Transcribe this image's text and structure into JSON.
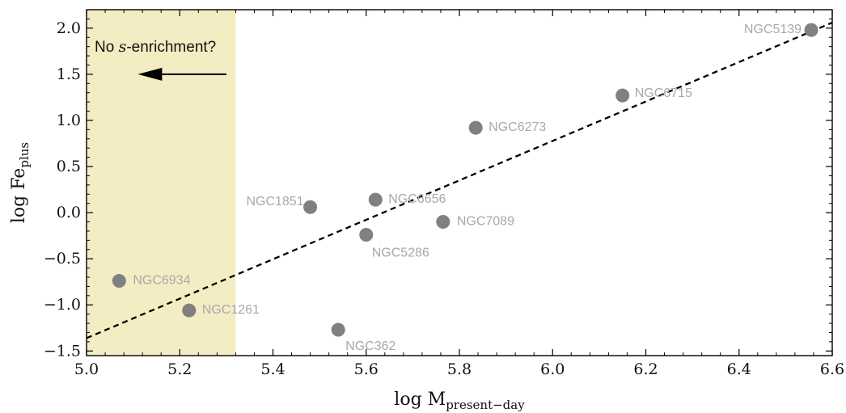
{
  "chart_data": {
    "type": "scatter",
    "xlabel": {
      "main": "log M",
      "sub": "present−day"
    },
    "ylabel": {
      "main": "log Fe",
      "sub": "plus"
    },
    "xlim": [
      5.0,
      6.6
    ],
    "ylim": [
      -1.55,
      2.2
    ],
    "xticks": [
      5.0,
      5.2,
      5.4,
      5.6,
      5.8,
      6.0,
      6.2,
      6.4,
      6.6
    ],
    "xtick_labels": [
      "5.0",
      "5.2",
      "5.4",
      "5.6",
      "5.8",
      "6.0",
      "6.2",
      "6.4",
      "6.6"
    ],
    "yticks": [
      -1.5,
      -1.0,
      -0.5,
      0.0,
      0.5,
      1.0,
      1.5,
      2.0
    ],
    "ytick_labels": [
      "−1.5",
      "−1.0",
      "−0.5",
      "0.0",
      "0.5",
      "1.0",
      "1.5",
      "2.0"
    ],
    "grid": false,
    "points": [
      {
        "name": "NGC6934",
        "x": 5.07,
        "y": -0.74
      },
      {
        "name": "NGC1261",
        "x": 5.22,
        "y": -1.06
      },
      {
        "name": "NGC1851",
        "x": 5.48,
        "y": 0.06
      },
      {
        "name": "NGC362",
        "x": 5.54,
        "y": -1.27
      },
      {
        "name": "NGC5286",
        "x": 5.6,
        "y": -0.24
      },
      {
        "name": "NGC6656",
        "x": 5.62,
        "y": 0.14
      },
      {
        "name": "NGC7089",
        "x": 5.765,
        "y": -0.1
      },
      {
        "name": "NGC6273",
        "x": 5.835,
        "y": 0.92
      },
      {
        "name": "NGC6715",
        "x": 6.15,
        "y": 1.27
      },
      {
        "name": "NGC5139",
        "x": 6.555,
        "y": 1.98
      }
    ],
    "fit_line": {
      "style": "dashed",
      "x": [
        5.0,
        6.6
      ],
      "y": [
        -1.36,
        2.06
      ]
    },
    "shaded_region": {
      "x": [
        5.0,
        5.32
      ],
      "color": "#f4edc3",
      "label_prefix": "No ",
      "label_italic": "s",
      "label_suffix": "-enrichment?",
      "arrow": {
        "x_from": 5.3,
        "x_to": 5.11,
        "y": 1.5,
        "direction": "left"
      }
    },
    "colors": {
      "points": "#808080",
      "point_labels": "#a8a8a8",
      "line": "#000000",
      "axes": "#000000"
    }
  }
}
